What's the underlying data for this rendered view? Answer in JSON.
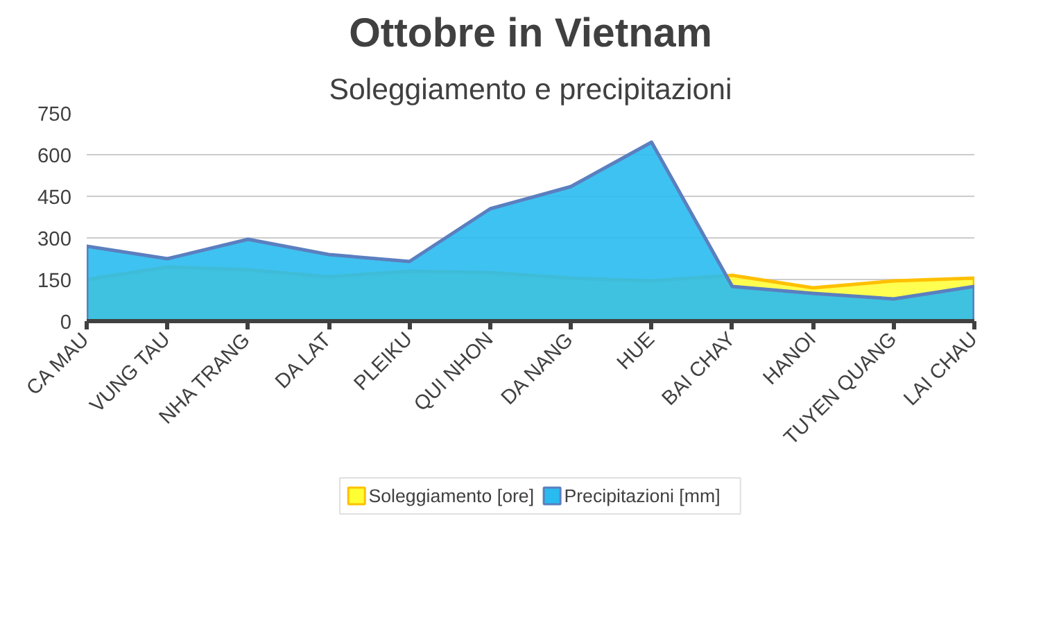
{
  "chart_data": {
    "type": "area",
    "title": "Ottobre in Vietnam",
    "subtitle": "Soleggiamento e precipitazioni",
    "categories": [
      "CA MAU",
      "VUNG TAU",
      "NHA TRANG",
      "DA LAT",
      "PLEIKU",
      "QUI NHON",
      "DA NANG",
      "HUE",
      "BAI CHAY",
      "HANOI",
      "TUYEN QUANG",
      "LAI CHAU"
    ],
    "series": [
      {
        "name": "Soleggiamento [ore]",
        "color": "#ffff33",
        "values": [
          150,
          195,
          185,
          160,
          180,
          175,
          155,
          145,
          165,
          120,
          145,
          155
        ]
      },
      {
        "name": "Precipitazioni [mm]",
        "color": "#29bbef",
        "values": [
          270,
          225,
          295,
          240,
          215,
          405,
          485,
          645,
          125,
          100,
          80,
          125
        ]
      }
    ],
    "ylim": [
      0,
      750
    ],
    "yticks": [
      0,
      150,
      300,
      450,
      600,
      750
    ],
    "grid": "y",
    "legend": "bottom"
  }
}
